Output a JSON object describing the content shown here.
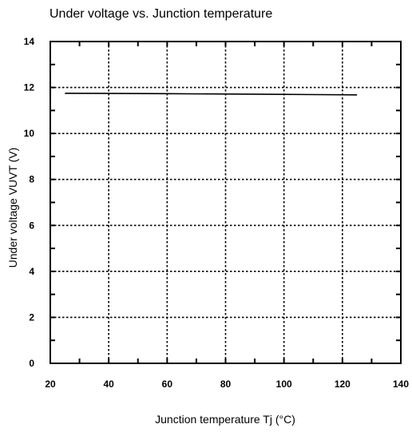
{
  "chart_data": {
    "type": "line",
    "title": "Under voltage vs. Junction temperature",
    "xlabel": "Junction temperature  Tj (°C)",
    "ylabel": "Under voltage  VUVT (V)",
    "xlim": [
      20,
      140
    ],
    "ylim": [
      0,
      14
    ],
    "x_ticks": [
      20,
      40,
      60,
      80,
      100,
      120,
      140
    ],
    "y_ticks": [
      0,
      2,
      4,
      6,
      8,
      10,
      12,
      14
    ],
    "x_minor_step": 10,
    "y_minor_step": 1,
    "grid": true,
    "series": [
      {
        "x": [
          25,
          60,
          100,
          125
        ],
        "values": [
          11.75,
          11.73,
          11.7,
          11.68
        ]
      }
    ]
  }
}
